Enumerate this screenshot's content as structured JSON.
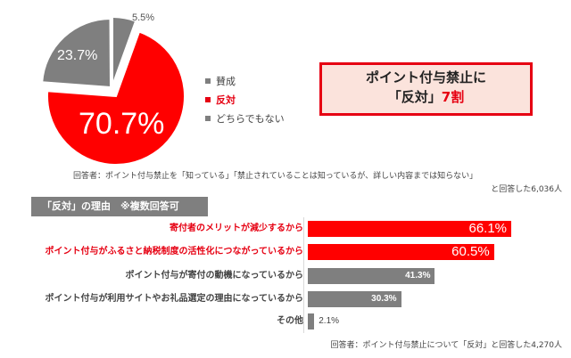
{
  "pie": {
    "slices": [
      {
        "label": "賛成",
        "value": 5.5,
        "display": "5.5%",
        "color": "#7f7f7f"
      },
      {
        "label": "反対",
        "value": 70.7,
        "display": "70.7%",
        "color": "#ff0000"
      },
      {
        "label": "どちらでもない",
        "value": 23.7,
        "display": "23.7%",
        "color": "#7f7f7f"
      }
    ]
  },
  "legend": {
    "items": [
      {
        "label": "賛成",
        "color": "#7f7f7f"
      },
      {
        "label": "反対",
        "color": "#e60012"
      },
      {
        "label": "どちらでもない",
        "color": "#7f7f7f"
      }
    ]
  },
  "headline": {
    "line1": "ポイント付与禁止に",
    "line2_prefix": "「反対」",
    "line2_accent": "7割"
  },
  "notes": {
    "pie_respondents_line1": "回答者：ポイント付与禁止を「知っている」「禁止されていることは知っているが、詳しい内容までは知らない」",
    "pie_respondents_line2": "と回答した6,036人",
    "bar_respondents": "回答者：ポイント付与禁止について「反対」と回答した4,270人"
  },
  "reasons": {
    "header": "「反対」の理由　※複数回答可",
    "items": [
      {
        "label": "寄付者のメリットが減少するから",
        "value": 66.1,
        "display": "66.1%",
        "highlight": true
      },
      {
        "label": "ポイント付与がふるさと納税制度の活性化につながっているから",
        "value": 60.5,
        "display": "60.5%",
        "highlight": true
      },
      {
        "label": "ポイント付与が寄付の動機になっているから",
        "value": 41.3,
        "display": "41.3%",
        "highlight": false
      },
      {
        "label": "ポイント付与が利用サイトやお礼品選定の理由になっているから",
        "value": 30.3,
        "display": "30.3%",
        "highlight": false
      },
      {
        "label": "その他",
        "value": 2.1,
        "display": "2.1%",
        "highlight": false
      }
    ]
  },
  "chart_data": [
    {
      "type": "pie",
      "title": "ポイント付与禁止に「反対」7割",
      "categories": [
        "賛成",
        "反対",
        "どちらでもない"
      ],
      "values": [
        5.5,
        70.7,
        23.7
      ],
      "colors": [
        "#7f7f7f",
        "#ff0000",
        "#7f7f7f"
      ],
      "legend_position": "right",
      "note": "回答者：ポイント付与禁止を「知っている」「禁止されていることは知っているが、詳しい内容までは知らない」と回答した6,036人"
    },
    {
      "type": "bar",
      "orientation": "horizontal",
      "title": "「反対」の理由　※複数回答可",
      "categories": [
        "寄付者のメリットが減少するから",
        "ポイント付与がふるさと納税制度の活性化につながっているから",
        "ポイント付与が寄付の動機になっているから",
        "ポイント付与が利用サイトやお礼品選定の理由になっているから",
        "その他"
      ],
      "values": [
        66.1,
        60.5,
        41.3,
        30.3,
        2.1
      ],
      "unit": "%",
      "grid": false,
      "note": "回答者：ポイント付与禁止について「反対」と回答した4,270人"
    }
  ]
}
